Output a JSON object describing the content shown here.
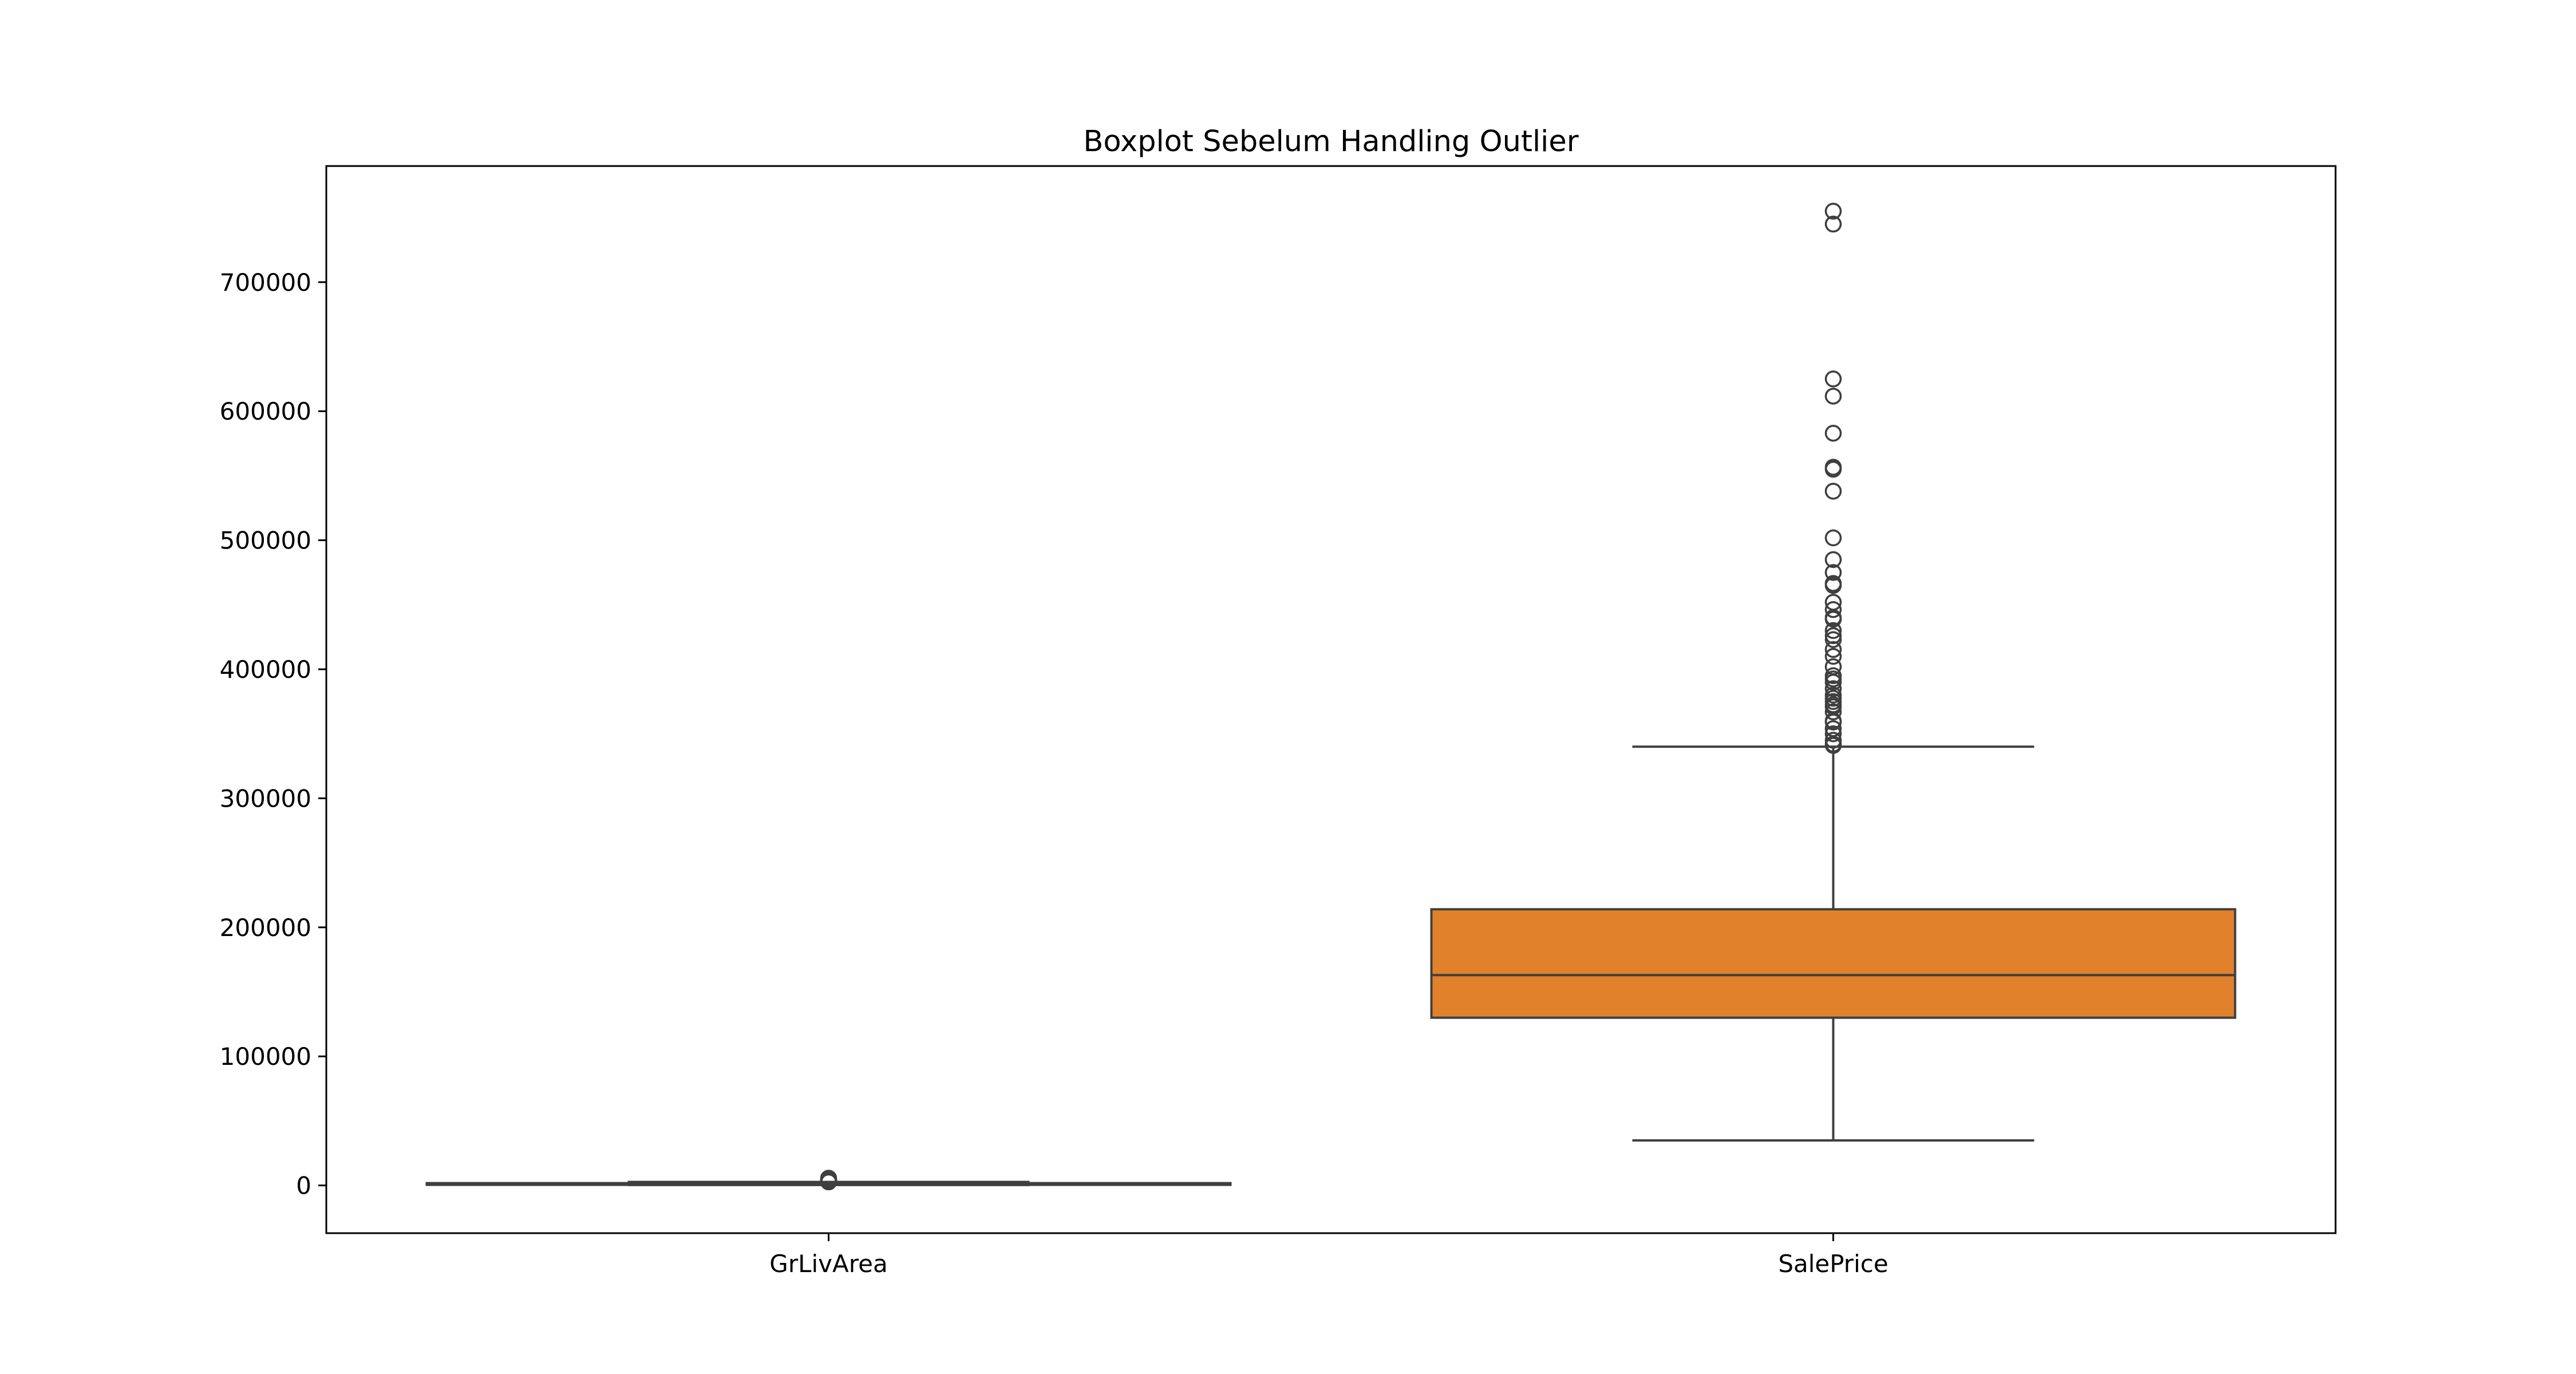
{
  "chart_data": {
    "type": "box",
    "title": "Boxplot Sebelum Handling Outlier",
    "xlabel": "",
    "ylabel": "",
    "ylim": [
      -37000,
      790000
    ],
    "yticks": [
      0,
      100000,
      200000,
      300000,
      400000,
      500000,
      600000,
      700000
    ],
    "ytick_labels": [
      "0",
      "100000",
      "200000",
      "300000",
      "400000",
      "500000",
      "600000",
      "700000"
    ],
    "grid": false,
    "categories": [
      "GrLivArea",
      "SalePrice"
    ],
    "boxes": [
      {
        "name": "GrLivArea",
        "color": "#1f77b4",
        "whisker_low": 334,
        "q1": 1130,
        "median": 1464,
        "q3": 1777,
        "whisker_high": 2730,
        "outliers": [
          2750,
          2800,
          2900,
          3000,
          3100,
          3200,
          3400,
          3600,
          4300,
          4500,
          4700,
          5600
        ]
      },
      {
        "name": "SalePrice",
        "color": "#e1812c",
        "whisker_low": 34900,
        "q1": 129975,
        "median": 163000,
        "q3": 214000,
        "whisker_high": 340000,
        "outliers": [
          341000,
          342000,
          345000,
          350000,
          354000,
          359100,
          360000,
          367000,
          370878,
          372500,
          375000,
          377500,
          380000,
          385000,
          390000,
          392500,
          395000,
          402000,
          410000,
          415298,
          423000,
          426000,
          430000,
          438780,
          440000,
          446261,
          451950,
          465000,
          466500,
          475000,
          485000,
          501837,
          538000,
          555000,
          556581,
          582933,
          611657,
          625000,
          745000,
          755000
        ]
      }
    ]
  }
}
